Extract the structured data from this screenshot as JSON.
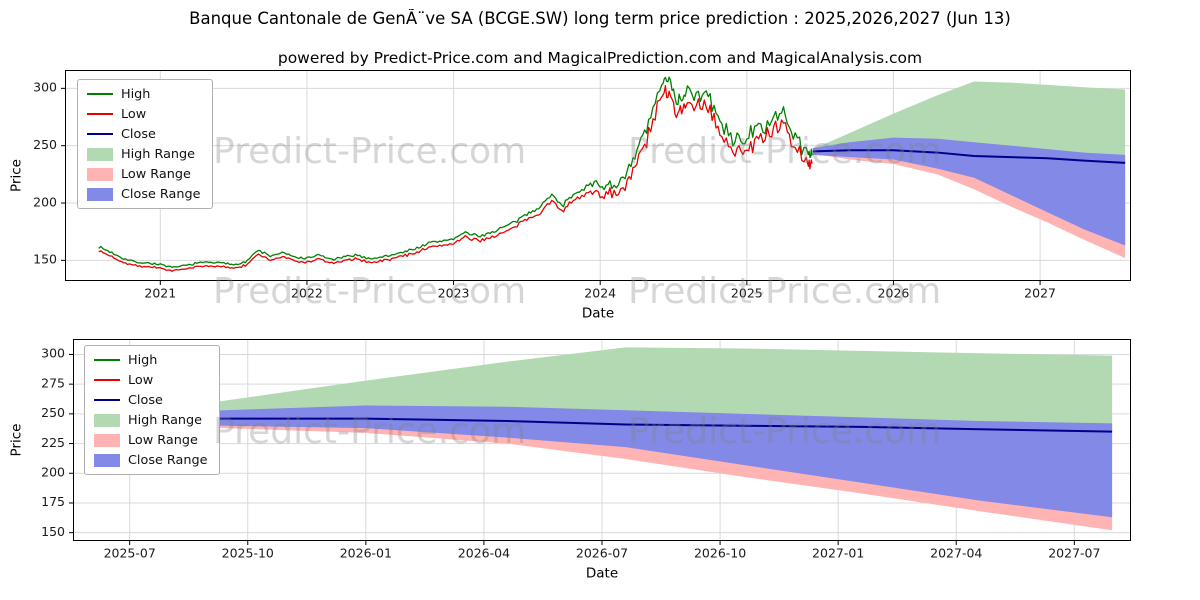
{
  "title": "Banque Cantonale de GenÃ¨ve SA (BCGE.SW) long term price prediction : 2025,2026,2027 (Jun 13)",
  "subtitle": "powered by Predict-Price.com and MagicalPrediction.com and MagicalAnalysis.com",
  "watermark": "Predict-Price.com",
  "colors": {
    "high": "#008000",
    "low": "#e60000",
    "close": "#00008b",
    "high_range": "#b3d9b3",
    "low_range": "#ffb3b3",
    "close_range": "#8289e6",
    "grid": "#d9d9d9",
    "spine": "#000000",
    "tick_text": "#1a1a1a"
  },
  "legend": [
    {
      "label": "High",
      "swatch": "line",
      "color": "high"
    },
    {
      "label": "Low",
      "swatch": "line",
      "color": "low"
    },
    {
      "label": "Close",
      "swatch": "line",
      "color": "close"
    },
    {
      "label": "High Range",
      "swatch": "patch",
      "color": "high_range"
    },
    {
      "label": "Low Range",
      "swatch": "patch",
      "color": "low_range"
    },
    {
      "label": "Close Range",
      "swatch": "patch",
      "color": "close_range"
    }
  ],
  "chart_data": [
    {
      "type": "line",
      "name": "overview",
      "title": "",
      "xlabel": "Date",
      "ylabel": "Price",
      "grid": true,
      "legend_position": "upper left",
      "xlim": [
        2020.35,
        2027.62
      ],
      "ylim": [
        132,
        316
      ],
      "x_ticks": [
        {
          "v": 2021,
          "label": "2021"
        },
        {
          "v": 2022,
          "label": "2022"
        },
        {
          "v": 2023,
          "label": "2023"
        },
        {
          "v": 2024,
          "label": "2024"
        },
        {
          "v": 2025,
          "label": "2025"
        },
        {
          "v": 2026,
          "label": "2026"
        },
        {
          "v": 2027,
          "label": "2027"
        }
      ],
      "y_ticks": [
        {
          "v": 150,
          "label": "150"
        },
        {
          "v": 200,
          "label": "200"
        },
        {
          "v": 250,
          "label": "250"
        },
        {
          "v": 300,
          "label": "300"
        }
      ],
      "history": {
        "x": [
          2020.58,
          2020.67,
          2020.75,
          2020.83,
          2020.92,
          2021.0,
          2021.08,
          2021.17,
          2021.25,
          2021.33,
          2021.42,
          2021.5,
          2021.58,
          2021.67,
          2021.75,
          2021.83,
          2021.92,
          2022.0,
          2022.08,
          2022.17,
          2022.25,
          2022.33,
          2022.42,
          2022.5,
          2022.58,
          2022.67,
          2022.75,
          2022.83,
          2022.92,
          2023.0,
          2023.08,
          2023.17,
          2023.25,
          2023.33,
          2023.42,
          2023.5,
          2023.58,
          2023.67,
          2023.75,
          2023.83,
          2023.92,
          2024.0,
          2024.08,
          2024.17,
          2024.25,
          2024.33,
          2024.42,
          2024.47,
          2024.53,
          2024.58,
          2024.67,
          2024.75,
          2024.83,
          2024.92,
          2025.0,
          2025.08,
          2025.17,
          2025.25,
          2025.33,
          2025.42,
          2025.45
        ],
        "close": [
          160,
          155,
          150,
          147,
          146,
          145,
          142,
          144,
          146,
          147,
          146,
          145,
          147,
          157,
          152,
          155,
          151,
          150,
          153,
          149,
          151,
          153,
          150,
          151,
          153,
          156,
          159,
          163,
          165,
          167,
          172,
          169,
          172,
          176,
          181,
          188,
          194,
          204,
          196,
          207,
          212,
          211,
          213,
          216,
          240,
          264,
          297,
          306,
          282,
          293,
          289,
          286,
          261,
          250,
          253,
          259,
          268,
          272,
          254,
          237,
          245
        ]
      },
      "prediction": {
        "x": [
          2025.45,
          2025.7,
          2026.0,
          2026.3,
          2026.55,
          2026.8,
          2027.05,
          2027.3,
          2027.58
        ],
        "high_top": [
          247,
          261,
          278,
          294,
          306,
          305,
          303,
          301,
          299
        ],
        "close_top": [
          248,
          253,
          257,
          256,
          253,
          250,
          247,
          244,
          242
        ],
        "close": [
          245,
          246,
          246,
          244,
          241,
          240,
          239,
          237,
          235
        ],
        "close_bottom": [
          242,
          240,
          238,
          230,
          222,
          207,
          192,
          177,
          163
        ],
        "low_bottom": [
          243,
          238,
          234,
          225,
          212,
          197,
          183,
          168,
          152
        ]
      }
    },
    {
      "type": "line",
      "name": "prediction-detail",
      "title": "",
      "xlabel": "Date",
      "ylabel": "Price",
      "grid": true,
      "legend_position": "upper left",
      "xlim": [
        2025.38,
        2027.62
      ],
      "ylim": [
        143,
        313
      ],
      "x_ticks": [
        {
          "v": 2025.5,
          "label": "2025-07"
        },
        {
          "v": 2025.75,
          "label": "2025-10"
        },
        {
          "v": 2026.0,
          "label": "2026-01"
        },
        {
          "v": 2026.25,
          "label": "2026-04"
        },
        {
          "v": 2026.5,
          "label": "2026-07"
        },
        {
          "v": 2026.75,
          "label": "2026-10"
        },
        {
          "v": 2027.0,
          "label": "2027-01"
        },
        {
          "v": 2027.25,
          "label": "2027-04"
        },
        {
          "v": 2027.5,
          "label": "2027-07"
        }
      ],
      "y_ticks": [
        {
          "v": 150,
          "label": "150"
        },
        {
          "v": 175,
          "label": "175"
        },
        {
          "v": 200,
          "label": "200"
        },
        {
          "v": 225,
          "label": "225"
        },
        {
          "v": 250,
          "label": "250"
        },
        {
          "v": 275,
          "label": "275"
        },
        {
          "v": 300,
          "label": "300"
        }
      ],
      "prediction": {
        "x": [
          2025.45,
          2025.7,
          2026.0,
          2026.3,
          2026.55,
          2026.8,
          2027.05,
          2027.3,
          2027.58
        ],
        "high_top": [
          247,
          261,
          278,
          294,
          306,
          305,
          303,
          301,
          299
        ],
        "close_top": [
          248,
          253,
          257,
          256,
          253,
          250,
          247,
          244,
          242
        ],
        "close": [
          245,
          246,
          246,
          244,
          241,
          240,
          239,
          237,
          235
        ],
        "close_bottom": [
          242,
          240,
          238,
          230,
          222,
          207,
          192,
          177,
          163
        ],
        "low_bottom": [
          243,
          238,
          234,
          225,
          212,
          197,
          183,
          168,
          152
        ]
      }
    }
  ]
}
